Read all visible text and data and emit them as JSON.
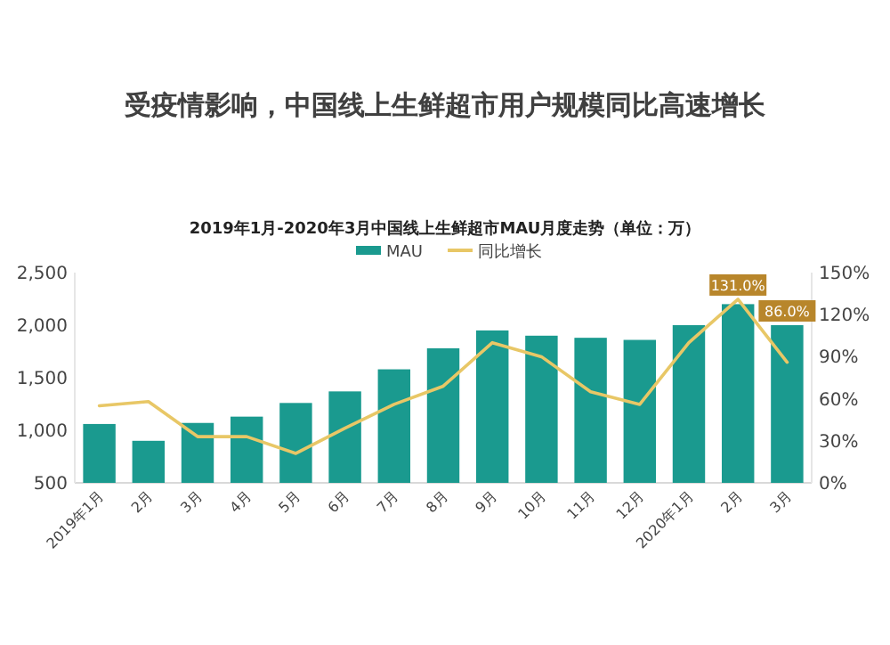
{
  "chart_data": {
    "type": "bar",
    "title": "受疫情影响，中国线上生鲜超市用户规模同比高速增长",
    "subtitle": "2019年1月-2020年3月中国线上生鲜超市MAU月度走势（单位：万）",
    "categories": [
      "2019年1月",
      "2月",
      "3月",
      "4月",
      "5月",
      "6月",
      "7月",
      "8月",
      "9月",
      "10月",
      "11月",
      "12月",
      "2020年1月",
      "2月",
      "3月"
    ],
    "series": [
      {
        "name": "MAU",
        "color": "#1a9a8f",
        "values": [
          1060,
          900,
          1070,
          1130,
          1260,
          1370,
          1580,
          1780,
          1950,
          1900,
          1880,
          1860,
          2000,
          2200,
          2000
        ]
      },
      {
        "name": "同比增长",
        "type": "line",
        "axis": "y2",
        "color": "#e8c766",
        "values": [
          55,
          58,
          33,
          33,
          21,
          39,
          56,
          69,
          100,
          90,
          65,
          56,
          100,
          131,
          86
        ],
        "value_labels": [
          null,
          null,
          null,
          null,
          null,
          null,
          null,
          null,
          null,
          null,
          null,
          null,
          null,
          "131.0%",
          "86.0%"
        ]
      }
    ],
    "ylim": [
      500,
      2500
    ],
    "yticks": [
      {
        "value": 500,
        "label": "500"
      },
      {
        "value": 1000,
        "label": "1,000"
      },
      {
        "value": 1500,
        "label": "1,500"
      },
      {
        "value": 2000,
        "label": "2,000"
      },
      {
        "value": 2500,
        "label": "2,500"
      }
    ],
    "y2lim": [
      0,
      150
    ],
    "y2ticks": [
      {
        "value": 0,
        "label": "0%"
      },
      {
        "value": 30,
        "label": "30%"
      },
      {
        "value": 60,
        "label": "60%"
      },
      {
        "value": 90,
        "label": "90%"
      },
      {
        "value": 120,
        "label": "120%"
      },
      {
        "value": 150,
        "label": "150%"
      }
    ],
    "legend": "top"
  }
}
